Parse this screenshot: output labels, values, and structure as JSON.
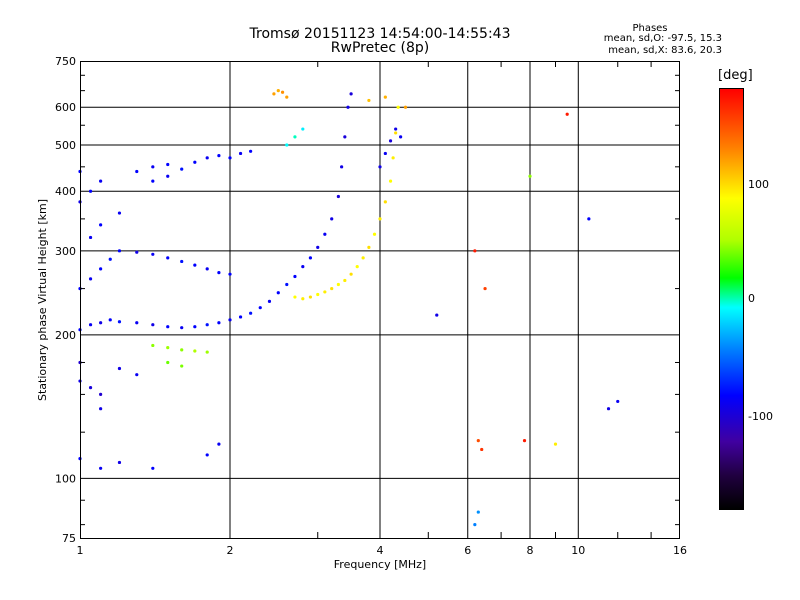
{
  "header": {
    "title_line1": "Tromsø 20151123 14:54:00-14:55:43",
    "title_line2": "RwPretec (8p)",
    "phase_title": "Phases",
    "phase_o": "mean, sd,O: -97.5, 15.3",
    "phase_x": "mean, sd,X: 83.6, 20.3"
  },
  "colorbar": {
    "unit": "[deg]",
    "labels": [
      "100",
      "0",
      "-100"
    ],
    "colors_top_to_bottom": [
      "#ff0000",
      "#ffff00",
      "#00ff00",
      "#00ffff",
      "#0000ff",
      "#000000"
    ]
  },
  "chart_data": {
    "type": "scatter",
    "title": "Tromsø 20151123 14:54:00-14:55:43",
    "subtitle": "RwPretec (8p)",
    "xlabel": "Frequency [MHz]",
    "ylabel": "Stationary phase Virtual Height [km]",
    "x_scale": "log",
    "y_scale": "log",
    "xlim": [
      1,
      16
    ],
    "ylim": [
      75,
      750
    ],
    "x_ticks": [
      "1",
      "2",
      "4",
      "6",
      "8",
      "10",
      "16"
    ],
    "y_ticks": [
      "75",
      "100",
      "200",
      "300",
      "400",
      "500",
      "600",
      "750"
    ],
    "grid": true,
    "colorbar_range": [
      -180,
      180
    ],
    "series": [
      {
        "points": [
          [
            1.0,
            205,
            -100
          ],
          [
            1.05,
            210,
            -105
          ],
          [
            1.1,
            212,
            -110
          ],
          [
            1.15,
            215,
            -100
          ],
          [
            1.2,
            213,
            -95
          ],
          [
            1.3,
            212,
            -105
          ],
          [
            1.4,
            210,
            -110
          ],
          [
            1.5,
            208,
            -100
          ],
          [
            1.6,
            207,
            -105
          ],
          [
            1.7,
            208,
            -100
          ],
          [
            1.8,
            210,
            -95
          ],
          [
            1.9,
            212,
            -100
          ],
          [
            2.0,
            215,
            -105
          ],
          [
            2.1,
            218,
            -100
          ],
          [
            2.2,
            222,
            -95
          ],
          [
            2.3,
            228,
            -100
          ],
          [
            2.4,
            235,
            -105
          ],
          [
            2.5,
            245,
            -100
          ],
          [
            2.6,
            255,
            -95
          ],
          [
            2.7,
            265,
            -100
          ],
          [
            2.8,
            278,
            -105
          ],
          [
            2.9,
            290,
            -100
          ],
          [
            3.0,
            305,
            -110
          ],
          [
            3.1,
            325,
            -105
          ],
          [
            3.2,
            350,
            -110
          ],
          [
            3.3,
            390,
            -115
          ],
          [
            3.35,
            450,
            -110
          ],
          [
            3.4,
            520,
            -115
          ],
          [
            3.45,
            600,
            -110
          ],
          [
            3.5,
            640,
            -115
          ]
        ]
      },
      {
        "points": [
          [
            1.0,
            250,
            -100
          ],
          [
            1.05,
            262,
            -105
          ],
          [
            1.1,
            275,
            -100
          ],
          [
            1.15,
            288,
            -95
          ],
          [
            1.2,
            300,
            -100
          ],
          [
            1.3,
            298,
            -110
          ],
          [
            1.4,
            295,
            -105
          ],
          [
            1.5,
            290,
            -100
          ],
          [
            1.6,
            285,
            -95
          ],
          [
            1.7,
            280,
            -100
          ],
          [
            1.8,
            275,
            -105
          ],
          [
            1.9,
            270,
            -100
          ],
          [
            2.0,
            268,
            -100
          ],
          [
            1.05,
            320,
            -105
          ],
          [
            1.1,
            340,
            -100
          ],
          [
            1.2,
            360,
            -105
          ],
          [
            1.0,
            380,
            -110
          ],
          [
            1.05,
            400,
            -100
          ],
          [
            1.1,
            420,
            -105
          ],
          [
            1.0,
            440,
            -100
          ]
        ]
      },
      {
        "points": [
          [
            1.3,
            440,
            -100
          ],
          [
            1.4,
            450,
            -105
          ],
          [
            1.5,
            455,
            -100
          ],
          [
            1.6,
            445,
            -95
          ],
          [
            1.7,
            460,
            -100
          ],
          [
            1.8,
            470,
            -105
          ],
          [
            1.9,
            475,
            -100
          ],
          [
            2.0,
            470,
            -100
          ],
          [
            2.1,
            480,
            -105
          ],
          [
            2.2,
            485,
            -100
          ],
          [
            1.4,
            420,
            -100
          ],
          [
            1.5,
            430,
            -105
          ]
        ]
      },
      {
        "points": [
          [
            2.7,
            240,
            90
          ],
          [
            2.8,
            238,
            95
          ],
          [
            2.9,
            240,
            100
          ],
          [
            3.0,
            243,
            90
          ],
          [
            3.1,
            246,
            95
          ],
          [
            3.2,
            250,
            100
          ],
          [
            3.3,
            255,
            90
          ],
          [
            3.4,
            260,
            95
          ],
          [
            3.5,
            268,
            100
          ],
          [
            3.6,
            278,
            90
          ],
          [
            3.7,
            290,
            95
          ],
          [
            3.8,
            305,
            100
          ],
          [
            3.9,
            325,
            90
          ],
          [
            4.0,
            350,
            95
          ],
          [
            4.1,
            380,
            100
          ],
          [
            4.2,
            420,
            90
          ],
          [
            4.25,
            470,
            95
          ],
          [
            4.3,
            530,
            100
          ],
          [
            4.35,
            600,
            90
          ]
        ]
      },
      {
        "points": [
          [
            4.0,
            450,
            -110
          ],
          [
            4.1,
            480,
            -105
          ],
          [
            4.2,
            510,
            -115
          ],
          [
            4.3,
            540,
            -110
          ],
          [
            4.4,
            520,
            -105
          ],
          [
            2.6,
            500,
            -20
          ],
          [
            2.7,
            520,
            -15
          ],
          [
            2.8,
            540,
            -25
          ]
        ]
      },
      {
        "points": [
          [
            2.45,
            640,
            120
          ],
          [
            2.5,
            650,
            115
          ],
          [
            2.55,
            645,
            125
          ],
          [
            2.6,
            630,
            120
          ],
          [
            3.8,
            620,
            110
          ],
          [
            4.1,
            630,
            115
          ],
          [
            4.5,
            600,
            120
          ]
        ]
      },
      {
        "points": [
          [
            1.4,
            190,
            40
          ],
          [
            1.5,
            188,
            45
          ],
          [
            1.6,
            186,
            40
          ],
          [
            1.7,
            185,
            50
          ],
          [
            1.8,
            184,
            45
          ],
          [
            1.5,
            175,
            30
          ],
          [
            1.6,
            172,
            35
          ]
        ]
      },
      {
        "points": [
          [
            1.0,
            160,
            -110
          ],
          [
            1.05,
            155,
            -115
          ],
          [
            1.1,
            150,
            -120
          ],
          [
            1.2,
            170,
            -110
          ],
          [
            1.3,
            165,
            -105
          ],
          [
            1.0,
            175,
            -120
          ],
          [
            1.1,
            140,
            -110
          ]
        ]
      },
      {
        "points": [
          [
            1.0,
            110,
            -100
          ],
          [
            1.1,
            105,
            -105
          ],
          [
            1.2,
            108,
            -110
          ],
          [
            1.4,
            105,
            -100
          ],
          [
            1.8,
            112,
            -100
          ],
          [
            1.9,
            118,
            -105
          ],
          [
            6.3,
            120,
            150
          ],
          [
            6.4,
            115,
            160
          ],
          [
            6.2,
            300,
            170
          ],
          [
            6.5,
            250,
            155
          ],
          [
            7.8,
            120,
            170
          ],
          [
            10.5,
            350,
            -100
          ],
          [
            11.5,
            140,
            -110
          ],
          [
            12.0,
            145,
            -105
          ],
          [
            6.2,
            80,
            -60
          ],
          [
            6.3,
            85,
            -55
          ],
          [
            9.5,
            580,
            170
          ],
          [
            9.0,
            118,
            95
          ],
          [
            8.0,
            430,
            40
          ],
          [
            5.2,
            220,
            -110
          ]
        ]
      }
    ]
  }
}
